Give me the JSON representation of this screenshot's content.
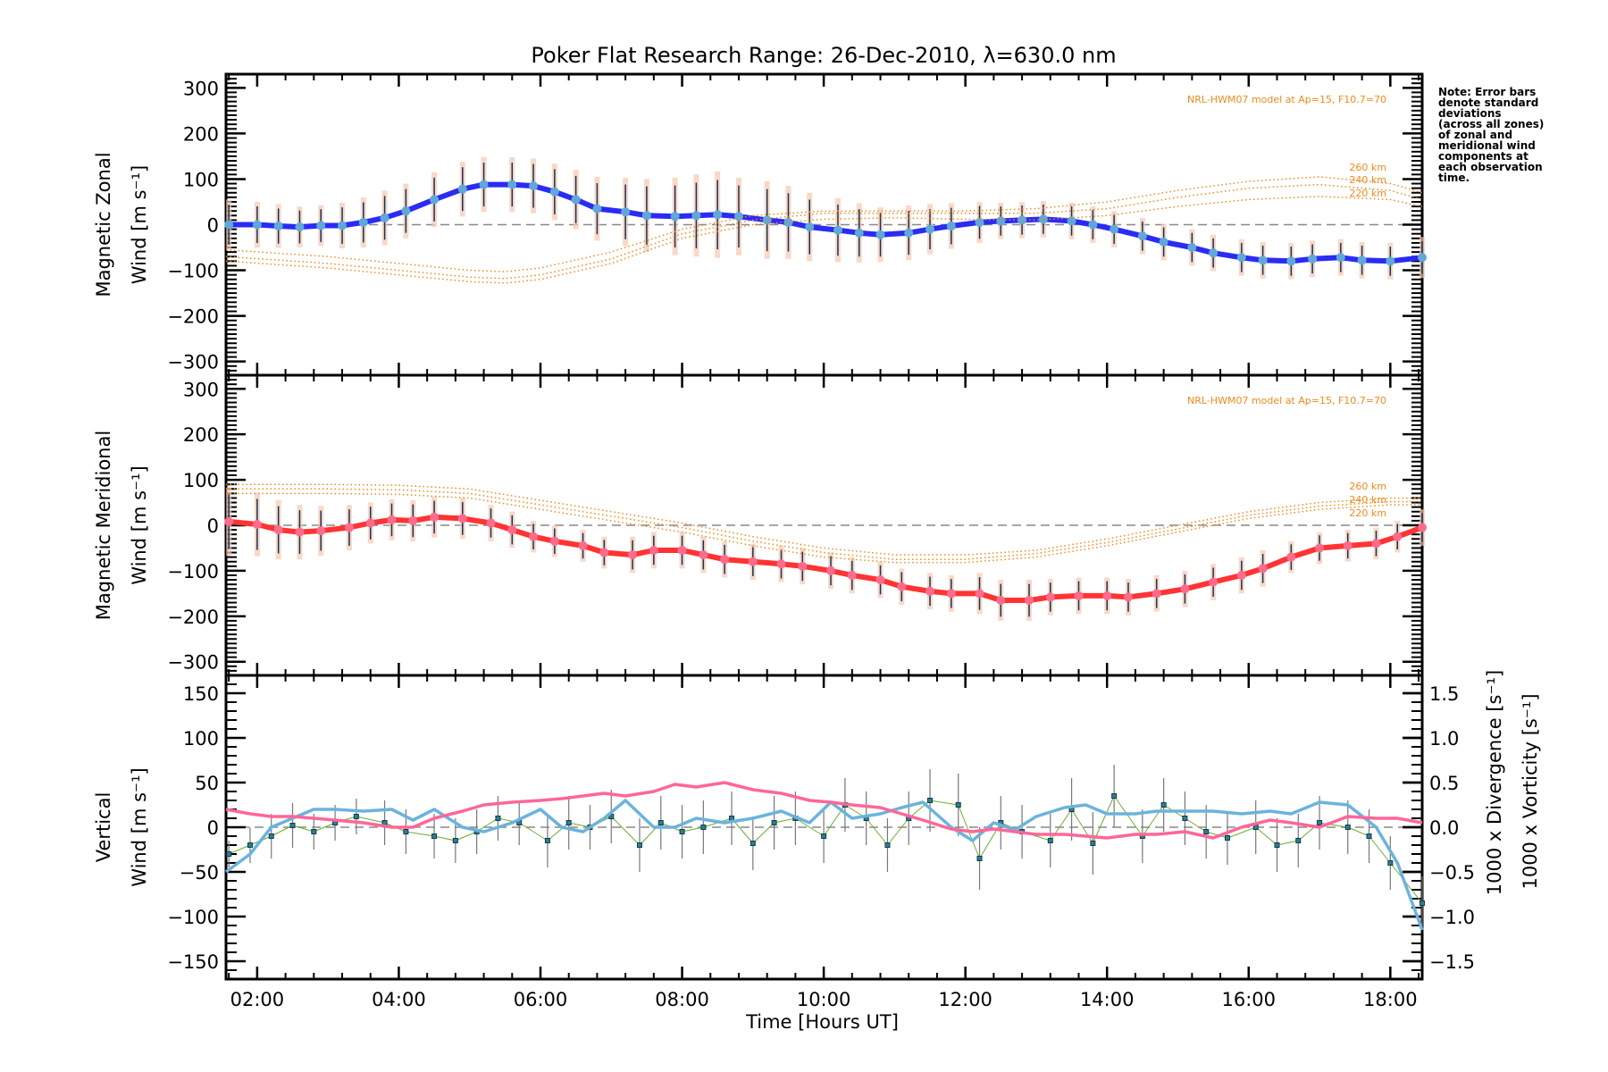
{
  "chart_data": [
    {
      "type": "line",
      "panel": "zonal",
      "title": "Poker Flat Research Range: 26-Dec-2010, λ=630.0 nm",
      "ylabel_line1": "Magnetic Zonal",
      "ylabel_line2": "Wind [m s⁻¹]",
      "ylim": [
        -330,
        330
      ],
      "yticks": [
        -300,
        -200,
        -100,
        0,
        100,
        200,
        300
      ],
      "model_annotation": "NRL-HWM07 model at Ap=15, F10.7=70",
      "model_labels": [
        "260 km",
        "240 km",
        "220 km"
      ],
      "series": [
        {
          "name": "Observed zonal wind",
          "color": "#2b2bf5",
          "x": [
            1.6,
            2.0,
            2.3,
            2.6,
            2.9,
            3.2,
            3.5,
            3.8,
            4.1,
            4.5,
            4.9,
            5.2,
            5.6,
            5.9,
            6.2,
            6.5,
            6.8,
            7.2,
            7.5,
            7.9,
            8.2,
            8.5,
            8.8,
            9.2,
            9.5,
            9.8,
            10.2,
            10.5,
            10.8,
            11.2,
            11.5,
            11.8,
            12.2,
            12.5,
            12.8,
            13.1,
            13.5,
            13.8,
            14.1,
            14.5,
            14.8,
            15.2,
            15.5,
            15.9,
            16.2,
            16.6,
            16.9,
            17.3,
            17.6,
            18.0,
            18.45
          ],
          "y": [
            0,
            0,
            -3,
            -5,
            -2,
            -2,
            5,
            15,
            30,
            55,
            78,
            88,
            88,
            85,
            72,
            55,
            35,
            28,
            20,
            18,
            20,
            22,
            18,
            10,
            5,
            -5,
            -12,
            -18,
            -22,
            -18,
            -10,
            -3,
            5,
            8,
            10,
            12,
            8,
            0,
            -10,
            -25,
            -38,
            -50,
            -62,
            -72,
            -78,
            -80,
            -75,
            -72,
            -78,
            -80,
            -72
          ],
          "err": [
            55,
            50,
            48,
            45,
            45,
            50,
            55,
            60,
            60,
            60,
            60,
            60,
            60,
            60,
            62,
            65,
            70,
            75,
            80,
            85,
            90,
            95,
            85,
            85,
            80,
            75,
            70,
            65,
            60,
            60,
            55,
            50,
            45,
            40,
            40,
            40,
            40,
            40,
            40,
            40,
            40,
            40,
            40,
            40,
            40,
            40,
            40,
            40,
            40,
            40,
            45
          ]
        },
        {
          "name": "HWM07 260 km",
          "color": "#f08a1e",
          "style": "dotted",
          "x": [
            1.56,
            3,
            4,
            5,
            5.5,
            6,
            7,
            8,
            9,
            10,
            11,
            12,
            13,
            14,
            15,
            16,
            17,
            18,
            18.45
          ],
          "y": [
            -55,
            -70,
            -85,
            -100,
            -103,
            -95,
            -60,
            -10,
            20,
            30,
            30,
            30,
            35,
            50,
            75,
            95,
            105,
            90,
            70
          ]
        },
        {
          "name": "HWM07 240 km",
          "color": "#f08a1e",
          "style": "dotted",
          "x": [
            1.56,
            3,
            4,
            5,
            5.5,
            6,
            7,
            8,
            9,
            10,
            11,
            12,
            13,
            14,
            15,
            16,
            17,
            18,
            18.45
          ],
          "y": [
            -70,
            -85,
            -100,
            -115,
            -118,
            -110,
            -75,
            -20,
            10,
            25,
            25,
            25,
            25,
            35,
            60,
            80,
            88,
            75,
            55
          ]
        },
        {
          "name": "HWM07 220 km",
          "color": "#f08a1e",
          "style": "dotted",
          "x": [
            1.56,
            3,
            4,
            5,
            5.5,
            6,
            7,
            8,
            9,
            10,
            11,
            12,
            13,
            14,
            15,
            16,
            17,
            18,
            18.45
          ],
          "y": [
            -80,
            -95,
            -110,
            -125,
            -128,
            -120,
            -85,
            -30,
            0,
            12,
            15,
            12,
            10,
            20,
            40,
            55,
            62,
            55,
            40
          ]
        }
      ]
    },
    {
      "type": "line",
      "panel": "meridional",
      "ylabel_line1": "Magnetic Meridional",
      "ylabel_line2": "Wind [m s⁻¹]",
      "ylim": [
        -330,
        330
      ],
      "yticks": [
        -300,
        -200,
        -100,
        0,
        100,
        200,
        300
      ],
      "model_annotation": "NRL-HWM07 model at Ap=15, F10.7=70",
      "model_labels": [
        "260 km",
        "240 km",
        "220 km"
      ],
      "series": [
        {
          "name": "Observed meridional wind",
          "color": "#ff3333",
          "x": [
            1.6,
            2.0,
            2.3,
            2.6,
            2.9,
            3.3,
            3.6,
            3.9,
            4.2,
            4.5,
            4.9,
            5.3,
            5.6,
            5.9,
            6.2,
            6.6,
            6.9,
            7.3,
            7.6,
            8.0,
            8.3,
            8.6,
            9.0,
            9.4,
            9.7,
            10.1,
            10.4,
            10.8,
            11.1,
            11.5,
            11.8,
            12.2,
            12.5,
            12.9,
            13.2,
            13.6,
            14.0,
            14.3,
            14.7,
            15.1,
            15.5,
            15.9,
            16.2,
            16.6,
            17.0,
            17.4,
            17.8,
            18.1,
            18.45
          ],
          "y": [
            8,
            2,
            -10,
            -15,
            -12,
            -5,
            5,
            12,
            10,
            18,
            15,
            5,
            -10,
            -25,
            -35,
            -45,
            -60,
            -65,
            -55,
            -55,
            -65,
            -75,
            -80,
            -85,
            -90,
            -100,
            -110,
            -120,
            -135,
            -145,
            -150,
            -150,
            -165,
            -165,
            -158,
            -155,
            -155,
            -158,
            -150,
            -140,
            -125,
            -110,
            -95,
            -70,
            -50,
            -45,
            -40,
            -25,
            -5
          ],
          "err": [
            75,
            70,
            65,
            60,
            55,
            50,
            45,
            45,
            45,
            45,
            45,
            40,
            40,
            35,
            35,
            35,
            35,
            40,
            40,
            40,
            40,
            40,
            40,
            40,
            40,
            40,
            40,
            40,
            40,
            40,
            40,
            45,
            45,
            45,
            40,
            40,
            40,
            40,
            40,
            40,
            40,
            40,
            40,
            35,
            35,
            35,
            35,
            35,
            40
          ]
        },
        {
          "name": "HWM07 260 km",
          "color": "#f08a1e",
          "style": "dotted",
          "x": [
            1.56,
            3,
            4,
            5,
            6,
            7,
            8,
            9,
            10,
            11,
            12,
            13,
            14,
            15,
            16,
            17,
            18,
            18.45
          ],
          "y": [
            90,
            90,
            88,
            80,
            55,
            30,
            5,
            -25,
            -50,
            -65,
            -65,
            -55,
            -30,
            0,
            30,
            50,
            60,
            60
          ]
        },
        {
          "name": "HWM07 240 km",
          "color": "#f08a1e",
          "style": "dotted",
          "x": [
            1.56,
            3,
            4,
            5,
            6,
            7,
            8,
            9,
            10,
            11,
            12,
            13,
            14,
            15,
            16,
            17,
            18,
            18.45
          ],
          "y": [
            80,
            80,
            78,
            70,
            45,
            20,
            -5,
            -35,
            -60,
            -75,
            -75,
            -62,
            -38,
            -8,
            22,
            42,
            52,
            52
          ]
        },
        {
          "name": "HWM07 220 km",
          "color": "#f08a1e",
          "style": "dotted",
          "x": [
            1.56,
            3,
            4,
            5,
            6,
            7,
            8,
            9,
            10,
            11,
            12,
            13,
            14,
            15,
            16,
            17,
            18,
            18.45
          ],
          "y": [
            70,
            70,
            68,
            60,
            35,
            10,
            -15,
            -45,
            -70,
            -82,
            -82,
            -70,
            -45,
            -15,
            15,
            35,
            45,
            45
          ]
        }
      ]
    },
    {
      "type": "line",
      "panel": "vertical",
      "xlabel": "Time [Hours UT]",
      "xticks": [
        "02:00",
        "04:00",
        "06:00",
        "08:00",
        "10:00",
        "12:00",
        "14:00",
        "16:00",
        "18:00"
      ],
      "xlim_hours": [
        1.56,
        18.45
      ],
      "ylabel_line1": "Vertical",
      "ylabel_line2": "Wind [m s⁻¹]",
      "ylim": [
        -170,
        170
      ],
      "yticks": [
        -150,
        -100,
        -50,
        0,
        50,
        100,
        150
      ],
      "y2label_divergence": "1000 x Divergence [s⁻¹]",
      "y2label_vorticity": "1000 x Vorticity [s⁻¹]",
      "y2lim": [
        -1.7,
        1.7
      ],
      "y2ticks": [
        "−1.5",
        "−1.0",
        "−0.5",
        "0.0",
        "0.5",
        "1.0",
        "1.5"
      ],
      "series": [
        {
          "name": "Vertical wind",
          "color": "#6aad2e",
          "axis": "left",
          "x": [
            1.6,
            1.9,
            2.2,
            2.5,
            2.8,
            3.1,
            3.4,
            3.8,
            4.1,
            4.5,
            4.8,
            5.1,
            5.4,
            5.7,
            6.1,
            6.4,
            6.7,
            7.0,
            7.4,
            7.7,
            8.0,
            8.3,
            8.7,
            9.0,
            9.3,
            9.6,
            10.0,
            10.3,
            10.6,
            10.9,
            11.2,
            11.5,
            11.9,
            12.2,
            12.5,
            12.8,
            13.2,
            13.5,
            13.8,
            14.1,
            14.5,
            14.8,
            15.1,
            15.4,
            15.7,
            16.1,
            16.4,
            16.7,
            17.0,
            17.4,
            17.7,
            18.0,
            18.45
          ],
          "y": [
            -30,
            -20,
            -10,
            2,
            -5,
            5,
            12,
            5,
            -5,
            -10,
            -15,
            -5,
            10,
            5,
            -15,
            5,
            0,
            12,
            -20,
            5,
            -5,
            0,
            10,
            -18,
            5,
            10,
            -10,
            25,
            10,
            -20,
            10,
            30,
            25,
            -35,
            5,
            -5,
            -15,
            20,
            -18,
            35,
            -10,
            25,
            10,
            -5,
            -12,
            0,
            -20,
            -15,
            5,
            0,
            -10,
            -40,
            -85
          ],
          "err": [
            15,
            20,
            25,
            25,
            20,
            20,
            20,
            25,
            25,
            25,
            25,
            25,
            25,
            25,
            30,
            30,
            25,
            30,
            30,
            30,
            30,
            30,
            30,
            30,
            30,
            30,
            30,
            30,
            30,
            30,
            30,
            35,
            35,
            35,
            30,
            30,
            30,
            35,
            35,
            35,
            30,
            30,
            30,
            30,
            30,
            30,
            30,
            30,
            30,
            30,
            30,
            30,
            30
          ]
        },
        {
          "name": "1000 x Divergence",
          "color": "#6bb3dd",
          "axis": "right",
          "x": [
            1.56,
            1.9,
            2.2,
            2.5,
            2.8,
            3.1,
            3.5,
            3.9,
            4.2,
            4.5,
            4.9,
            5.2,
            5.6,
            6.0,
            6.3,
            6.6,
            6.9,
            7.2,
            7.6,
            7.9,
            8.2,
            8.6,
            9.0,
            9.4,
            9.8,
            10.1,
            10.4,
            10.8,
            11.1,
            11.4,
            11.8,
            12.1,
            12.4,
            12.7,
            13.0,
            13.4,
            13.7,
            14.0,
            14.4,
            14.7,
            15.1,
            15.5,
            15.9,
            16.3,
            16.6,
            17.0,
            17.4,
            17.8,
            18.1,
            18.45
          ],
          "y": [
            -0.5,
            -0.3,
            0.0,
            0.1,
            0.2,
            0.2,
            0.18,
            0.2,
            0.08,
            0.2,
            0.0,
            -0.05,
            0.05,
            0.2,
            0.0,
            -0.05,
            0.1,
            0.3,
            0.0,
            0.0,
            0.1,
            0.05,
            0.1,
            0.18,
            0.05,
            0.28,
            0.1,
            0.15,
            0.22,
            0.28,
            0.0,
            -0.15,
            0.05,
            -0.03,
            0.12,
            0.22,
            0.25,
            0.15,
            0.15,
            0.18,
            0.18,
            0.18,
            0.15,
            0.18,
            0.15,
            0.28,
            0.25,
            0.0,
            -0.4,
            -1.15
          ]
        },
        {
          "name": "1000 x Vorticity",
          "color": "#ff6699",
          "axis": "right",
          "x": [
            1.56,
            1.9,
            2.2,
            2.5,
            2.8,
            3.1,
            3.5,
            3.9,
            4.2,
            4.5,
            4.9,
            5.2,
            5.6,
            6.0,
            6.3,
            6.6,
            6.9,
            7.2,
            7.6,
            7.9,
            8.2,
            8.6,
            9.0,
            9.4,
            9.8,
            10.1,
            10.4,
            10.8,
            11.1,
            11.4,
            11.8,
            12.1,
            12.4,
            12.7,
            13.0,
            13.4,
            13.7,
            14.0,
            14.4,
            14.7,
            15.1,
            15.5,
            15.9,
            16.3,
            16.6,
            17.0,
            17.4,
            17.8,
            18.1,
            18.45
          ],
          "y": [
            0.2,
            0.15,
            0.12,
            0.12,
            0.1,
            0.08,
            0.05,
            0.0,
            0.0,
            0.1,
            0.18,
            0.25,
            0.28,
            0.3,
            0.32,
            0.35,
            0.38,
            0.35,
            0.4,
            0.48,
            0.45,
            0.5,
            0.42,
            0.38,
            0.3,
            0.28,
            0.25,
            0.22,
            0.15,
            0.08,
            -0.02,
            -0.05,
            -0.02,
            -0.05,
            -0.08,
            -0.08,
            -0.1,
            -0.12,
            -0.08,
            -0.08,
            -0.05,
            -0.12,
            0.0,
            0.08,
            0.05,
            0.0,
            0.12,
            0.1,
            0.1,
            0.05
          ]
        }
      ]
    }
  ],
  "note_lines": [
    "Note: Error bars",
    "denote standard",
    "deviations",
    "(across all zones)",
    "of zonal and",
    "meridional wind",
    "components at",
    "each observation",
    "time."
  ]
}
